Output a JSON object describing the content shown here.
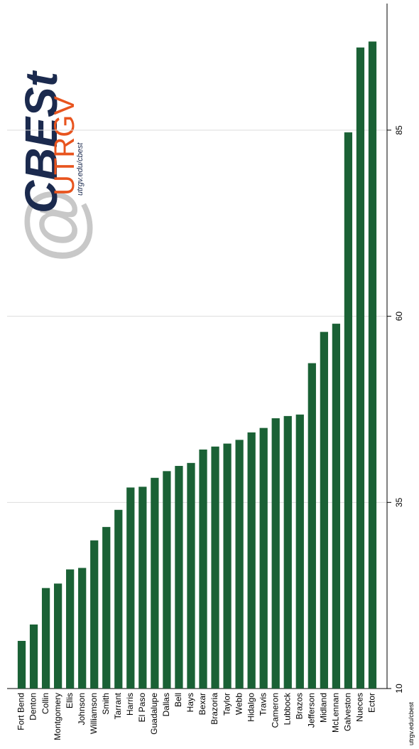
{
  "chart_data": {
    "type": "bar",
    "categories": [
      "Fort Bend",
      "Denton",
      "Collin",
      "Montgomery",
      "Ellis",
      "Johnson",
      "Williamson",
      "Smith",
      "Tarrant",
      "Harris",
      "El Paso",
      "Guadalupe",
      "Dallas",
      "Bell",
      "Hays",
      "Bexar",
      "Brazoria",
      "Taylor",
      "Webb",
      "Hidalgo",
      "Travis",
      "Cameron",
      "Lubbock",
      "Brazos",
      "Jefferson",
      "Midland",
      "McLennan",
      "Galveston",
      "Nueces",
      "Ector"
    ],
    "values": [
      16.4,
      18.6,
      23.5,
      24.1,
      26.0,
      26.2,
      29.9,
      31.7,
      34.0,
      37.0,
      37.1,
      38.3,
      39.2,
      39.9,
      40.3,
      42.1,
      42.5,
      42.9,
      43.4,
      44.4,
      45.0,
      46.3,
      46.6,
      46.8,
      53.7,
      57.9,
      59.0,
      84.7,
      96.1,
      96.9
    ],
    "color": "#1a6135",
    "ylim": [
      10,
      102
    ],
    "yticks": [
      10,
      35,
      60,
      85
    ],
    "grid": true,
    "logo": {
      "symbol": "@",
      "brand": "CBESt",
      "org": "UTRGV",
      "url": "utrgv.edu/cbest"
    },
    "footer": "utrgv.edu/cbest"
  }
}
